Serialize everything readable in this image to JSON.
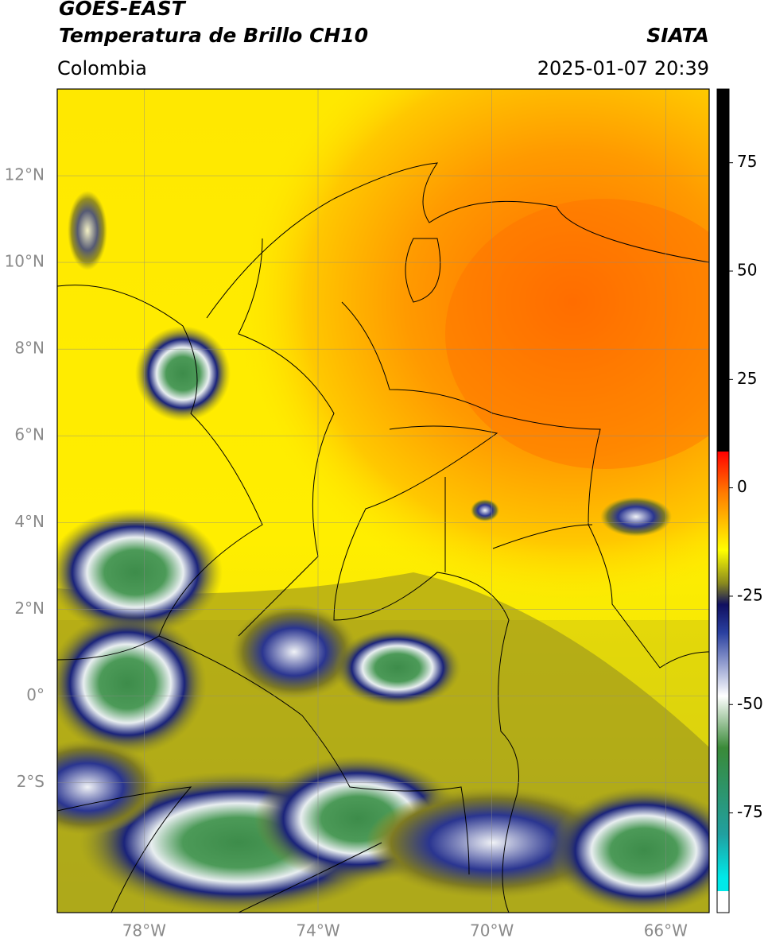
{
  "header": {
    "title": "GOES-EAST",
    "subtitle": "Temperatura de Brillo CH10",
    "source": "SIATA",
    "region": "Colombia",
    "datetime": "2025-01-07 20:39"
  },
  "map": {
    "xlim": [
      -80,
      -65
    ],
    "ylim": [
      -5,
      14
    ],
    "xticks": [
      {
        "value": -78,
        "label": "78°W"
      },
      {
        "value": -74,
        "label": "74°W"
      },
      {
        "value": -70,
        "label": "70°W"
      },
      {
        "value": -66,
        "label": "66°W"
      }
    ],
    "yticks": [
      {
        "value": -2,
        "label": "2°S"
      },
      {
        "value": 0,
        "label": "0°"
      },
      {
        "value": 2,
        "label": "2°N"
      },
      {
        "value": 4,
        "label": "4°N"
      },
      {
        "value": 6,
        "label": "6°N"
      },
      {
        "value": 8,
        "label": "8°N"
      },
      {
        "value": 10,
        "label": "10°N"
      },
      {
        "value": 12,
        "label": "12°N"
      }
    ],
    "grid": true
  },
  "colorbar": {
    "clim": [
      -98,
      92
    ],
    "ticks": [
      -75,
      -50,
      -25,
      0,
      25,
      50,
      75
    ]
  }
}
